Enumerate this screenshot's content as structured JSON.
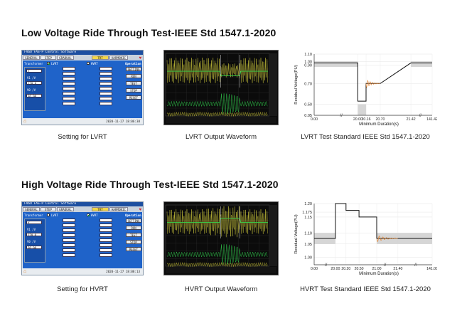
{
  "sections": [
    {
      "title": "Low Voltage Ride Through Test-IEEE Std 1547.1-2020",
      "captions": {
        "settings": "Setting for LVRT",
        "waveform": "LVRT Output Waveform",
        "standard": "LVRT Test Standard IEEE Std 1547.1-2020"
      }
    },
    {
      "title": "High Voltage Ride Through Test-IEEE Std 1547.1-2020",
      "captions": {
        "settings": "Setting for HVRT",
        "waveform": "HVRT Output Waveform",
        "standard": "HVRT Test Standard IEEE Std 1547.1-2020"
      }
    }
  ],
  "screens": {
    "lvrt": {
      "titlebar": "FV6O FAS-P Control Software",
      "tabs": [
        "GENERAL",
        "STEP",
        "GRADUAL",
        "TRT",
        "HARMONIC"
      ],
      "active_tab": "TRT",
      "options_title": "Operation",
      "buttons": [
        "SETTING",
        "RUN",
        "TEST",
        "STOP",
        "RESET"
      ],
      "mode_box": "Transformer",
      "mode_value": "Y",
      "checks": [
        {
          "label": "LVRT",
          "on": true
        },
        {
          "label": "HVRT",
          "on": false
        }
      ],
      "datetime": "2020-11-27 18:06:38",
      "left_fields": [
        "V1 /V",
        "120.0",
        "V0 /V",
        "36.00"
      ]
    },
    "hvrt": {
      "titlebar": "FV6O FAS-P Control Software",
      "tabs": [
        "GENERAL",
        "STEP",
        "GRADUAL",
        "TRT",
        "HARMONIC"
      ],
      "active_tab": "TRT",
      "options_title": "Operation",
      "buttons": [
        "SETTING",
        "RUN",
        "TEST",
        "STOP",
        "RESET"
      ],
      "mode_box": "Transformer",
      "mode_value": "Y",
      "checks": [
        {
          "label": "LVRT",
          "on": false
        },
        {
          "label": "HVRT",
          "on": true
        }
      ],
      "datetime": "2020-11-27 18:08:13",
      "left_fields": [
        "V1 /V",
        "120.0",
        "V0 /V",
        "30.00"
      ]
    }
  },
  "chart_data": [
    {
      "type": "line",
      "title": "",
      "xlabel": "Minimum Duration(s)",
      "ylabel": "Residual Voltage(PU)",
      "x_ticks": [
        "0.00",
        "20.00",
        "20.16",
        "20.70",
        "21.42",
        "141.42"
      ],
      "y_ticks": [
        "0.05",
        "0.50",
        "0.70",
        "0.90",
        "1.00",
        "1.10"
      ],
      "series": [
        {
          "x": [
            "0.00",
            "20.00",
            "20.00",
            "20.16",
            "20.16",
            "20.70",
            "21.42",
            "21.42",
            "141.42"
          ],
          "y": [
            0.96,
            0.96,
            0.53,
            0.53,
            0.7,
            0.7,
            0.96,
            0.96,
            0.96
          ]
        }
      ]
    },
    {
      "type": "line",
      "title": "",
      "xlabel": "Minimum Duration(s)",
      "ylabel": "Residual Voltage(PU)",
      "x_ticks": [
        "0.00",
        "20.00",
        "20.20",
        "20.50",
        "21.00",
        "21.40",
        "141.00"
      ],
      "y_ticks": [
        "1.00",
        "1.05",
        "1.10",
        "1.15",
        "1.175",
        "1.20"
      ],
      "series": [
        {
          "x": [
            "0.00",
            "20.00",
            "20.00",
            "20.20",
            "20.20",
            "20.50",
            "20.50",
            "21.00",
            "21.00",
            "141.00"
          ],
          "y": [
            1.075,
            1.075,
            1.2,
            1.2,
            1.18,
            1.18,
            1.15,
            1.15,
            1.075,
            1.075
          ]
        }
      ]
    }
  ]
}
